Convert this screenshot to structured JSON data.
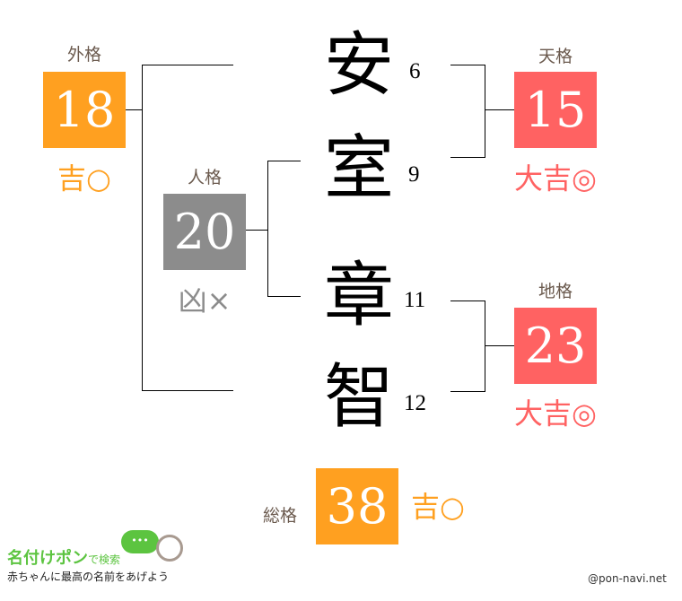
{
  "colors": {
    "good": "#FFA020",
    "great": "#FF6262",
    "bad": "#8C8C8C",
    "label": "#6b5a4e",
    "logo_green": "#5cc440"
  },
  "name_chars": [
    {
      "char": "安",
      "strokes": "6"
    },
    {
      "char": "室",
      "strokes": "9"
    },
    {
      "char": "章",
      "strokes": "11"
    },
    {
      "char": "智",
      "strokes": "12"
    }
  ],
  "gaikaku": {
    "label": "外格",
    "value": "18",
    "fortune": "吉○"
  },
  "jinkaku": {
    "label": "人格",
    "value": "20",
    "fortune": "凶×"
  },
  "tenkaku": {
    "label": "天格",
    "value": "15",
    "fortune": "大吉◎"
  },
  "chikaku": {
    "label": "地格",
    "value": "23",
    "fortune": "大吉◎"
  },
  "soukaku": {
    "label": "総格",
    "value": "38",
    "fortune": "吉○"
  },
  "logo": {
    "title": "名付けポン",
    "title_suffix": "で検索",
    "tagline": "赤ちゃんに最高の名前をあげよう",
    "bubble": "•••"
  },
  "credit": "@pon-navi.net"
}
